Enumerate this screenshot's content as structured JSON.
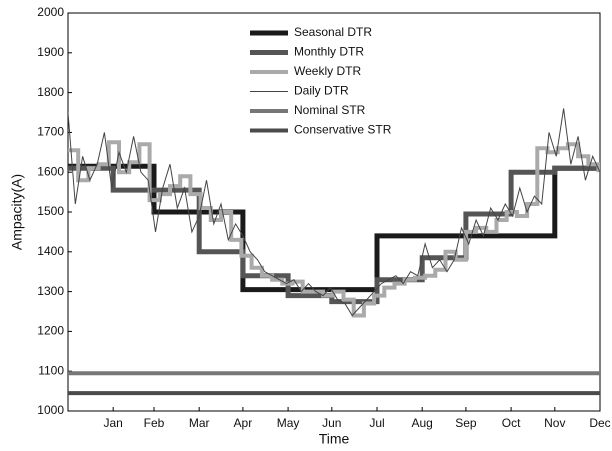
{
  "chart_data": {
    "type": "line",
    "xlabel": "Time",
    "ylabel": "Ampacity(A)",
    "xlim": [
      0,
      365
    ],
    "ylim": [
      1000,
      2000
    ],
    "xticks": [
      {
        "value": 31,
        "label": "Jan"
      },
      {
        "value": 59,
        "label": "Feb"
      },
      {
        "value": 90,
        "label": "Mar"
      },
      {
        "value": 120,
        "label": "Apr"
      },
      {
        "value": 151,
        "label": "May"
      },
      {
        "value": 181,
        "label": "Jun"
      },
      {
        "value": 212,
        "label": "Jul"
      },
      {
        "value": 243,
        "label": "Aug"
      },
      {
        "value": 273,
        "label": "Sep"
      },
      {
        "value": 304,
        "label": "Oct"
      },
      {
        "value": 334,
        "label": "Nov"
      },
      {
        "value": 365,
        "label": "Dec"
      }
    ],
    "yticks": [
      1000,
      1100,
      1200,
      1300,
      1400,
      1500,
      1600,
      1700,
      1800,
      1900,
      2000
    ],
    "grid": false,
    "legend": "upper center",
    "series": [
      {
        "name": "Seasonal DTR",
        "color": "#1a1a1a",
        "width": 5,
        "drawstyle": "steps-post",
        "x": [
          0,
          59,
          120,
          212,
          334,
          365
        ],
        "values": [
          1615,
          1500,
          1305,
          1440,
          1610,
          1610
        ]
      },
      {
        "name": "Monthly DTR",
        "color": "#555555",
        "width": 5,
        "drawstyle": "steps-post",
        "x": [
          0,
          31,
          59,
          90,
          120,
          151,
          181,
          212,
          243,
          273,
          304,
          334,
          365
        ],
        "values": [
          1610,
          1555,
          1555,
          1400,
          1340,
          1290,
          1275,
          1330,
          1385,
          1495,
          1600,
          1610,
          1610
        ]
      },
      {
        "name": "Weekly DTR",
        "color": "#aaaaaa",
        "width": 4,
        "drawstyle": "steps-post",
        "x": [
          0,
          7,
          14,
          21,
          28,
          35,
          42,
          49,
          56,
          63,
          70,
          77,
          84,
          91,
          98,
          105,
          112,
          119,
          126,
          133,
          140,
          147,
          154,
          161,
          168,
          175,
          182,
          189,
          196,
          203,
          210,
          217,
          224,
          231,
          238,
          245,
          252,
          259,
          266,
          273,
          280,
          287,
          294,
          301,
          308,
          315,
          322,
          329,
          336,
          343,
          350,
          357,
          364
        ],
        "values": [
          1655,
          1580,
          1610,
          1620,
          1675,
          1600,
          1625,
          1670,
          1530,
          1545,
          1565,
          1590,
          1545,
          1510,
          1480,
          1500,
          1430,
          1390,
          1360,
          1340,
          1330,
          1320,
          1325,
          1300,
          1300,
          1290,
          1300,
          1280,
          1240,
          1270,
          1290,
          1310,
          1320,
          1330,
          1335,
          1340,
          1355,
          1400,
          1380,
          1450,
          1460,
          1450,
          1480,
          1500,
          1490,
          1520,
          1660,
          1650,
          1660,
          1670,
          1640,
          1620,
          1600
        ]
      },
      {
        "name": "Daily DTR",
        "color": "#444444",
        "width": 1,
        "drawstyle": "default",
        "x": [
          0,
          5,
          10,
          15,
          20,
          25,
          30,
          35,
          40,
          45,
          50,
          55,
          60,
          65,
          70,
          75,
          80,
          85,
          90,
          95,
          100,
          105,
          110,
          115,
          120,
          125,
          130,
          135,
          140,
          145,
          150,
          155,
          160,
          165,
          170,
          175,
          180,
          185,
          190,
          195,
          200,
          205,
          210,
          215,
          220,
          225,
          230,
          235,
          240,
          245,
          250,
          255,
          260,
          265,
          270,
          275,
          280,
          285,
          290,
          295,
          300,
          305,
          310,
          315,
          320,
          325,
          330,
          335,
          340,
          345,
          350,
          355,
          360,
          365
        ],
        "values": [
          1750,
          1520,
          1640,
          1580,
          1620,
          1700,
          1560,
          1650,
          1600,
          1690,
          1600,
          1580,
          1450,
          1560,
          1620,
          1510,
          1560,
          1450,
          1490,
          1580,
          1470,
          1520,
          1430,
          1470,
          1440,
          1400,
          1380,
          1350,
          1340,
          1330,
          1320,
          1330,
          1300,
          1320,
          1300,
          1290,
          1310,
          1280,
          1270,
          1240,
          1260,
          1280,
          1300,
          1320,
          1330,
          1340,
          1320,
          1350,
          1340,
          1420,
          1360,
          1380,
          1350,
          1380,
          1460,
          1420,
          1480,
          1440,
          1510,
          1480,
          1520,
          1490,
          1560,
          1500,
          1540,
          1520,
          1700,
          1640,
          1760,
          1620,
          1690,
          1580,
          1640,
          1600
        ]
      },
      {
        "name": "Nominal STR",
        "color": "#777777",
        "width": 4,
        "drawstyle": "default",
        "x": [
          0,
          365
        ],
        "values": [
          1095,
          1095
        ]
      },
      {
        "name": "Conservative STR",
        "color": "#4a4a4a",
        "width": 4,
        "drawstyle": "default",
        "x": [
          0,
          365
        ],
        "values": [
          1045,
          1045
        ]
      }
    ]
  }
}
